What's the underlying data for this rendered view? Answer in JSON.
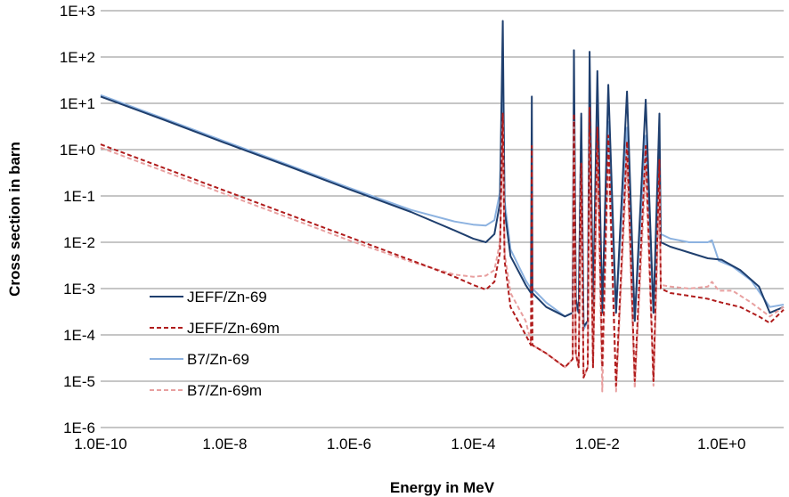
{
  "chart_data": {
    "type": "line",
    "xlabel": "Energy in MeV",
    "ylabel": "Cross section in barn",
    "x_scale": "log",
    "y_scale": "log",
    "xlim": [
      1e-10,
      10
    ],
    "ylim": [
      1e-06,
      1000
    ],
    "x_ticks": [
      1e-10,
      1e-08,
      1e-06,
      0.0001,
      0.01,
      1
    ],
    "x_tick_labels": [
      "1.0E-10",
      "1.0E-8",
      "1.0E-6",
      "1.0E-4",
      "1.0E-2",
      "1.0E+0"
    ],
    "y_ticks": [
      1e-06,
      1e-05,
      0.0001,
      0.001,
      0.01,
      0.1,
      1,
      10,
      100,
      1000
    ],
    "y_tick_labels": [
      "1E-6",
      "1E-5",
      "1E-4",
      "1E-3",
      "1E-2",
      "1E-1",
      "1E+0",
      "1E+1",
      "1E+2",
      "1E+3"
    ],
    "grid": "horizontal",
    "legend_position": "lower-left",
    "series": [
      {
        "name": "JEFF/Zn-69",
        "color": "#1f3f6e",
        "style": "solid",
        "points": [
          [
            1e-10,
            14
          ],
          [
            1e-09,
            4.5
          ],
          [
            1e-08,
            1.4
          ],
          [
            1e-07,
            0.45
          ],
          [
            1e-06,
            0.14
          ],
          [
            1e-05,
            0.045
          ],
          [
            5e-05,
            0.018
          ],
          [
            0.0001,
            0.012
          ],
          [
            0.00016,
            0.01
          ],
          [
            0.00022,
            0.015
          ],
          [
            0.00027,
            0.07
          ],
          [
            0.0003,
            600
          ],
          [
            0.00032,
            0.05
          ],
          [
            0.0004,
            0.005
          ],
          [
            0.0007,
            0.0012
          ],
          [
            0.00085,
            0.0008
          ],
          [
            0.00088,
            14
          ],
          [
            0.0009,
            0.0008
          ],
          [
            0.0015,
            0.0004
          ],
          [
            0.003,
            0.00025
          ],
          [
            0.004,
            0.0003
          ],
          [
            0.0042,
            140
          ],
          [
            0.0045,
            0.0006
          ],
          [
            0.005,
            0.0003
          ],
          [
            0.0055,
            6
          ],
          [
            0.006,
            0.00015
          ],
          [
            0.007,
            0.0002
          ],
          [
            0.0075,
            130
          ],
          [
            0.0085,
            0.0003
          ],
          [
            0.01,
            50
          ],
          [
            0.012,
            0.0003
          ],
          [
            0.015,
            25
          ],
          [
            0.02,
            0.0003
          ],
          [
            0.03,
            18
          ],
          [
            0.04,
            0.0002
          ],
          [
            0.06,
            12
          ],
          [
            0.08,
            0.0003
          ],
          [
            0.1,
            6
          ],
          [
            0.105,
            0.01
          ],
          [
            0.15,
            0.008
          ],
          [
            0.3,
            0.006
          ],
          [
            0.6,
            0.0045
          ],
          [
            1,
            0.0042
          ],
          [
            2,
            0.0025
          ],
          [
            4,
            0.0011
          ],
          [
            6,
            0.0003
          ],
          [
            10,
            0.0004
          ]
        ]
      },
      {
        "name": "JEFF/Zn-69m",
        "color": "#b01c1c",
        "style": "dashed",
        "points": [
          [
            1e-10,
            1.3
          ],
          [
            1e-09,
            0.41
          ],
          [
            1e-08,
            0.13
          ],
          [
            1e-07,
            0.041
          ],
          [
            1e-06,
            0.013
          ],
          [
            1e-05,
            0.0041
          ],
          [
            5e-05,
            0.0018
          ],
          [
            0.0001,
            0.0012
          ],
          [
            0.00016,
            0.00095
          ],
          [
            0.00022,
            0.0014
          ],
          [
            0.00027,
            0.006
          ],
          [
            0.0003,
            6
          ],
          [
            0.00032,
            0.004
          ],
          [
            0.0004,
            0.0004
          ],
          [
            0.0007,
            0.0001
          ],
          [
            0.00085,
            6e-05
          ],
          [
            0.00088,
            1.2
          ],
          [
            0.0009,
            6e-05
          ],
          [
            0.0015,
            4e-05
          ],
          [
            0.003,
            2e-05
          ],
          [
            0.004,
            3e-05
          ],
          [
            0.0042,
            6
          ],
          [
            0.0045,
            4e-05
          ],
          [
            0.005,
            2e-05
          ],
          [
            0.0055,
            0.5
          ],
          [
            0.006,
            1.2e-05
          ],
          [
            0.007,
            2e-05
          ],
          [
            0.0075,
            8
          ],
          [
            0.0085,
            2e-05
          ],
          [
            0.01,
            3
          ],
          [
            0.012,
            2e-05
          ],
          [
            0.015,
            2
          ],
          [
            0.02,
            8e-06
          ],
          [
            0.03,
            1.5
          ],
          [
            0.04,
            1e-05
          ],
          [
            0.06,
            1.2
          ],
          [
            0.08,
            1e-05
          ],
          [
            0.1,
            0.6
          ],
          [
            0.105,
            0.001
          ],
          [
            0.15,
            0.0008
          ],
          [
            0.3,
            0.0007
          ],
          [
            0.6,
            0.0006
          ],
          [
            1,
            0.0005
          ],
          [
            2,
            0.0004
          ],
          [
            4,
            0.00025
          ],
          [
            6,
            0.00018
          ],
          [
            10,
            0.00035
          ]
        ]
      },
      {
        "name": "B7/Zn-69",
        "color": "#8cb2e0",
        "style": "solid",
        "points": [
          [
            1e-10,
            15
          ],
          [
            1e-09,
            4.8
          ],
          [
            1e-08,
            1.5
          ],
          [
            1e-07,
            0.48
          ],
          [
            1e-06,
            0.15
          ],
          [
            1e-05,
            0.05
          ],
          [
            5e-05,
            0.028
          ],
          [
            0.0001,
            0.024
          ],
          [
            0.00016,
            0.023
          ],
          [
            0.00022,
            0.03
          ],
          [
            0.00027,
            0.12
          ],
          [
            0.0003,
            60
          ],
          [
            0.00032,
            0.08
          ],
          [
            0.0004,
            0.007
          ],
          [
            0.0007,
            0.0015
          ],
          [
            0.00085,
            0.001
          ],
          [
            0.0009,
            0.001
          ],
          [
            0.0015,
            0.0005
          ],
          [
            0.003,
            0.00025
          ],
          [
            0.004,
            0.0003
          ],
          [
            0.0042,
            12
          ],
          [
            0.0045,
            0.0004
          ],
          [
            0.005,
            0.0003
          ],
          [
            0.0055,
            5
          ],
          [
            0.006,
            0.00013
          ],
          [
            0.007,
            0.0002
          ],
          [
            0.0075,
            10
          ],
          [
            0.0085,
            0.0003
          ],
          [
            0.01,
            5
          ],
          [
            0.012,
            0.0003
          ],
          [
            0.015,
            4
          ],
          [
            0.02,
            0.0003
          ],
          [
            0.03,
            3
          ],
          [
            0.04,
            0.0002
          ],
          [
            0.06,
            2
          ],
          [
            0.08,
            0.0003
          ],
          [
            0.1,
            1
          ],
          [
            0.105,
            0.015
          ],
          [
            0.15,
            0.012
          ],
          [
            0.3,
            0.01
          ],
          [
            0.6,
            0.01
          ],
          [
            0.7,
            0.011
          ],
          [
            0.9,
            0.004
          ],
          [
            1.5,
            0.003
          ],
          [
            3,
            0.0015
          ],
          [
            6,
            0.0004
          ],
          [
            10,
            0.00045
          ]
        ]
      },
      {
        "name": "B7/Zn-69m",
        "color": "#e8a0a0",
        "style": "dashed",
        "points": [
          [
            1e-10,
            1.1
          ],
          [
            1e-09,
            0.35
          ],
          [
            1e-08,
            0.11
          ],
          [
            1e-07,
            0.035
          ],
          [
            1e-06,
            0.011
          ],
          [
            1e-05,
            0.0038
          ],
          [
            5e-05,
            0.002
          ],
          [
            0.0001,
            0.0018
          ],
          [
            0.00016,
            0.0019
          ],
          [
            0.00022,
            0.0025
          ],
          [
            0.00027,
            0.01
          ],
          [
            0.0003,
            6
          ],
          [
            0.00032,
            0.006
          ],
          [
            0.0004,
            0.0008
          ],
          [
            0.0007,
            0.0002
          ],
          [
            0.00085,
            7e-05
          ],
          [
            0.0009,
            6e-05
          ],
          [
            0.0015,
            4e-05
          ],
          [
            0.003,
            2e-05
          ],
          [
            0.004,
            3e-05
          ],
          [
            0.0042,
            4
          ],
          [
            0.0045,
            4e-05
          ],
          [
            0.005,
            2e-05
          ],
          [
            0.0055,
            0.5
          ],
          [
            0.006,
            1.2e-05
          ],
          [
            0.007,
            2e-05
          ],
          [
            0.0075,
            2
          ],
          [
            0.0085,
            2e-05
          ],
          [
            0.01,
            1
          ],
          [
            0.012,
            6e-06
          ],
          [
            0.015,
            0.8
          ],
          [
            0.02,
            6e-06
          ],
          [
            0.03,
            0.6
          ],
          [
            0.04,
            7e-06
          ],
          [
            0.06,
            0.4
          ],
          [
            0.08,
            8e-06
          ],
          [
            0.1,
            0.15
          ],
          [
            0.105,
            0.0012
          ],
          [
            0.15,
            0.0011
          ],
          [
            0.3,
            0.001
          ],
          [
            0.6,
            0.0011
          ],
          [
            0.7,
            0.0014
          ],
          [
            0.9,
            0.0009
          ],
          [
            1.5,
            0.0009
          ],
          [
            3,
            0.0005
          ],
          [
            6,
            0.00025
          ],
          [
            10,
            0.0004
          ]
        ]
      }
    ]
  }
}
